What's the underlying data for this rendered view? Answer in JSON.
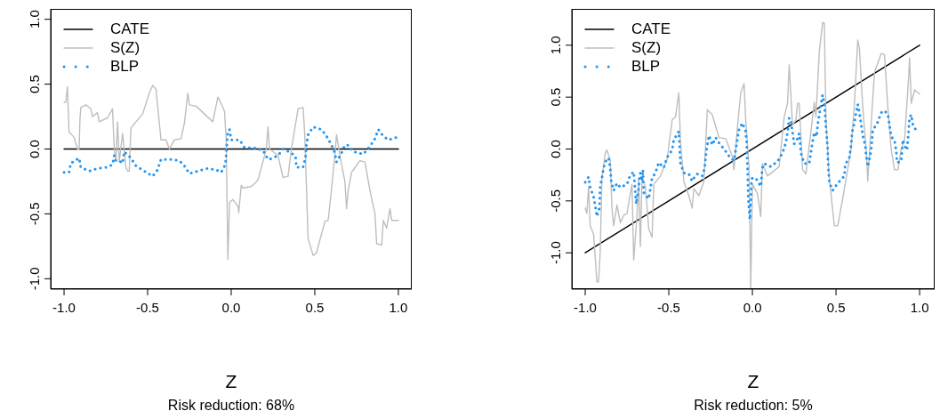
{
  "chart_data": [
    {
      "type": "line",
      "xlabel": "Z",
      "annotations": [
        "Risk reduction: 68%"
      ],
      "xlim": [
        -1.08,
        1.08
      ],
      "ylim": [
        -1.08,
        1.08
      ],
      "xticks": [
        {
          "value": -1,
          "label": "-1.0"
        },
        {
          "value": -0.5,
          "label": "-0.5"
        },
        {
          "value": 0,
          "label": "0.0"
        },
        {
          "value": 0.5,
          "label": "0.5"
        },
        {
          "value": 1,
          "label": "1.0"
        }
      ],
      "yticks": [
        {
          "value": -1,
          "label": "-1.0"
        },
        {
          "value": -0.5,
          "label": "-0.5"
        },
        {
          "value": 0,
          "label": "0.0"
        },
        {
          "value": 0.5,
          "label": "0.5"
        },
        {
          "value": 1,
          "label": "1.0"
        }
      ],
      "legend": "top left",
      "marker": "none",
      "series": [
        {
          "name": "CATE",
          "color": "#000000",
          "line_style": "solid",
          "x": [
            -1,
            1
          ],
          "values": [
            0,
            0
          ]
        },
        {
          "name": "S(Z)",
          "color": "#bebebe",
          "line_style": "solid",
          "x": [
            -1,
            -0.99,
            -0.98,
            -0.97,
            -0.94,
            -0.92,
            -0.91,
            -0.905,
            -0.9,
            -0.87,
            -0.84,
            -0.83,
            -0.8,
            -0.79,
            -0.74,
            -0.71,
            -0.7,
            -0.69,
            -0.68,
            -0.67,
            -0.65,
            -0.63,
            -0.62,
            -0.61,
            -0.6,
            -0.57,
            -0.53,
            -0.49,
            -0.47,
            -0.45,
            -0.42,
            -0.39,
            -0.37,
            -0.34,
            -0.3,
            -0.28,
            -0.26,
            -0.25,
            -0.21,
            -0.16,
            -0.11,
            -0.08,
            -0.06,
            -0.04,
            -0.03,
            -0.02,
            -0.01,
            0.01,
            0.04,
            0.045,
            0.06,
            0.07,
            0.12,
            0.16,
            0.21,
            0.22,
            0.23,
            0.28,
            0.31,
            0.34,
            0.36,
            0.4,
            0.43,
            0.44,
            0.46,
            0.49,
            0.51,
            0.56,
            0.58,
            0.6,
            0.62,
            0.63,
            0.65,
            0.68,
            0.69,
            0.7,
            0.72,
            0.77,
            0.8,
            0.83,
            0.86,
            0.87,
            0.9,
            0.91,
            0.93,
            0.95,
            0.96,
            1
          ],
          "values": [
            0.36,
            0.36,
            0.48,
            0.13,
            0.09,
            0,
            0,
            0.23,
            0.32,
            0.34,
            0.31,
            0.25,
            0.28,
            0.21,
            0.24,
            0.31,
            0,
            -0.09,
            0.21,
            -0.1,
            0.12,
            -0.14,
            -0.17,
            -0.17,
            0.16,
            0.21,
            0.27,
            0.43,
            0.49,
            0.46,
            0.07,
            0.07,
            0,
            0.07,
            0.08,
            0.2,
            0.43,
            0.34,
            0.33,
            0.27,
            0.21,
            0.4,
            0.35,
            0.29,
            0.07,
            -0.85,
            -0.41,
            -0.39,
            -0.44,
            -0.49,
            -0.28,
            -0.3,
            -0.29,
            -0.24,
            0,
            0.17,
            0,
            -0.05,
            -0.22,
            -0.21,
            0,
            0.31,
            0.32,
            0.11,
            -0.69,
            -0.82,
            -0.8,
            -0.56,
            -0.55,
            -0.31,
            -0.05,
            0.11,
            -0.05,
            -0.25,
            -0.46,
            -0.32,
            -0.18,
            -0.09,
            -0.1,
            -0.32,
            -0.5,
            -0.73,
            -0.74,
            -0.55,
            -0.61,
            -0.46,
            -0.55,
            -0.55
          ]
        },
        {
          "name": "BLP",
          "color": "#2196f3",
          "line_style": "dotted",
          "x": [
            -1,
            -0.97,
            -0.96,
            -0.91,
            -0.9,
            -0.85,
            -0.8,
            -0.74,
            -0.71,
            -0.7,
            -0.69,
            -0.67,
            -0.65,
            -0.64,
            -0.6,
            -0.57,
            -0.52,
            -0.47,
            -0.44,
            -0.42,
            -0.36,
            -0.31,
            -0.28,
            -0.25,
            -0.2,
            -0.14,
            -0.09,
            -0.06,
            -0.035,
            -0.03,
            -0.025,
            -0.02,
            -0.01,
            0,
            0.05,
            0.08,
            0.13,
            0.19,
            0.22,
            0.23,
            0.28,
            0.31,
            0.36,
            0.385,
            0.39,
            0.43,
            0.445,
            0.45,
            0.46,
            0.49,
            0.54,
            0.57,
            0.6,
            0.62,
            0.63,
            0.66,
            0.68,
            0.7,
            0.73,
            0.79,
            0.83,
            0.86,
            0.88,
            0.91,
            0.94,
            0.99
          ],
          "values": [
            -0.18,
            -0.18,
            -0.11,
            -0.07,
            -0.14,
            -0.17,
            -0.15,
            -0.14,
            -0.12,
            -0.05,
            -0.09,
            -0.09,
            -0.11,
            -0.02,
            -0.07,
            -0.13,
            -0.17,
            -0.21,
            -0.16,
            -0.08,
            -0.08,
            -0.09,
            -0.13,
            -0.19,
            -0.17,
            -0.15,
            -0.16,
            -0.18,
            -0.12,
            -0.04,
            0.05,
            0.13,
            0.15,
            0.07,
            0.07,
            0.01,
            0.01,
            -0.01,
            -0.08,
            -0.08,
            -0.05,
            0,
            -0.03,
            -0.06,
            -0.14,
            -0.14,
            -0.06,
            0.03,
            0.11,
            0.17,
            0.15,
            0.1,
            0.03,
            -0.03,
            -0.1,
            -0.03,
            0.03,
            0.03,
            -0.02,
            -0.04,
            0.02,
            0.08,
            0.15,
            0.1,
            0.07,
            0.09
          ]
        }
      ]
    },
    {
      "type": "line",
      "xlabel": "Z",
      "annotations": [
        "Risk reduction: 5%"
      ],
      "xlim": [
        -1.08,
        1.09
      ],
      "ylim": [
        -1.35,
        1.35
      ],
      "xticks": [
        {
          "value": -1,
          "label": "-1.0"
        },
        {
          "value": -0.5,
          "label": "-0.5"
        },
        {
          "value": 0,
          "label": "0.0"
        },
        {
          "value": 0.5,
          "label": "0.5"
        },
        {
          "value": 1,
          "label": "1.0"
        }
      ],
      "yticks": [
        {
          "value": -1,
          "label": "-1.0"
        },
        {
          "value": -0.5,
          "label": "-0.5"
        },
        {
          "value": 0,
          "label": "0.0"
        },
        {
          "value": 0.5,
          "label": "0.5"
        },
        {
          "value": 1,
          "label": "1.0"
        }
      ],
      "legend": "top left",
      "marker": "none",
      "series": [
        {
          "name": "CATE",
          "color": "#000000",
          "line_style": "solid",
          "x": [
            -1,
            1
          ],
          "values": [
            -1,
            1
          ]
        },
        {
          "name": "S(Z)",
          "color": "#bebebe",
          "line_style": "solid",
          "x": [
            -1,
            -0.99,
            -0.98,
            -0.97,
            -0.95,
            -0.93,
            -0.92,
            -0.91,
            -0.9,
            -0.88,
            -0.87,
            -0.85,
            -0.84,
            -0.83,
            -0.81,
            -0.79,
            -0.77,
            -0.75,
            -0.73,
            -0.72,
            -0.71,
            -0.69,
            -0.68,
            -0.67,
            -0.66,
            -0.64,
            -0.62,
            -0.6,
            -0.59,
            -0.55,
            -0.51,
            -0.48,
            -0.46,
            -0.44,
            -0.43,
            -0.41,
            -0.4,
            -0.38,
            -0.36,
            -0.35,
            -0.32,
            -0.29,
            -0.27,
            -0.24,
            -0.2,
            -0.16,
            -0.12,
            -0.11,
            -0.09,
            -0.07,
            -0.05,
            -0.04,
            -0.02,
            -0.01,
            0,
            0.03,
            0.05,
            0.06,
            0.09,
            0.16,
            0.19,
            0.21,
            0.22,
            0.24,
            0.26,
            0.27,
            0.28,
            0.3,
            0.32,
            0.35,
            0.37,
            0.38,
            0.4,
            0.42,
            0.43,
            0.44,
            0.46,
            0.49,
            0.51,
            0.54,
            0.59,
            0.61,
            0.63,
            0.64,
            0.66,
            0.68,
            0.69,
            0.71,
            0.73,
            0.77,
            0.79,
            0.81,
            0.83,
            0.85,
            0.87,
            0.89,
            0.91,
            0.935,
            0.94,
            0.95,
            0.97,
            1
          ],
          "values": [
            -0.57,
            -0.62,
            -0.36,
            -0.74,
            -0.82,
            -1.28,
            -1.28,
            -0.99,
            -0.28,
            -0.04,
            -0.01,
            -0.11,
            -0.57,
            -0.74,
            -0.54,
            -0.71,
            -0.64,
            -0.62,
            -0.43,
            -0.34,
            -1.07,
            -0.63,
            -0.28,
            -0.94,
            -0.28,
            -0.36,
            -0.77,
            -0.85,
            -0.34,
            -0.26,
            -0.1,
            0.28,
            0.31,
            0.54,
            0.06,
            -0.31,
            -0.36,
            -0.45,
            -0.57,
            -0.38,
            -0.45,
            -0.31,
            0.38,
            0.33,
            0.11,
            0.1,
            -0.07,
            -0.2,
            0.2,
            0.54,
            0.63,
            0.28,
            -0.17,
            -1.34,
            -0.34,
            -0.43,
            -0.65,
            -0.14,
            -0.26,
            -0.17,
            0.31,
            0.44,
            0.81,
            0.23,
            0.28,
            0.44,
            0.44,
            -0.2,
            -0.24,
            0.17,
            0.45,
            0.31,
            0.94,
            1.22,
            1.21,
            0.28,
            -0.28,
            -0.74,
            -0.74,
            -0.48,
            0,
            0.43,
            1.05,
            0.97,
            0.4,
            0,
            -0.31,
            0.23,
            0.74,
            0.92,
            0.91,
            0.4,
            0,
            -0.2,
            -0.2,
            0,
            0.09,
            0.71,
            0.88,
            0.44,
            0.57,
            0.53
          ]
        },
        {
          "name": "BLP",
          "color": "#2196f3",
          "line_style": "dotted",
          "x": [
            -1,
            -0.98,
            -0.97,
            -0.95,
            -0.94,
            -0.93,
            -0.915,
            -0.91,
            -0.9,
            -0.89,
            -0.87,
            -0.86,
            -0.85,
            -0.845,
            -0.83,
            -0.81,
            -0.79,
            -0.75,
            -0.73,
            -0.71,
            -0.705,
            -0.7,
            -0.695,
            -0.69,
            -0.68,
            -0.675,
            -0.67,
            -0.66,
            -0.655,
            -0.65,
            -0.62,
            -0.61,
            -0.6,
            -0.58,
            -0.56,
            -0.53,
            -0.51,
            -0.48,
            -0.47,
            -0.45,
            -0.44,
            -0.437,
            -0.434,
            -0.43,
            -0.41,
            -0.38,
            -0.36,
            -0.35,
            -0.33,
            -0.3,
            -0.285,
            -0.28,
            -0.27,
            -0.26,
            -0.24,
            -0.22,
            -0.2,
            -0.17,
            -0.13,
            -0.11,
            -0.1,
            -0.09,
            -0.08,
            -0.06,
            -0.04,
            -0.035,
            -0.03,
            -0.028,
            -0.025,
            -0.02,
            -0.015,
            -0.01,
            -0.005,
            0,
            0.02,
            0.05,
            0.06,
            0.07,
            0.11,
            0.15,
            0.18,
            0.2,
            0.21,
            0.22,
            0.23,
            0.24,
            0.25,
            0.27,
            0.28,
            0.29,
            0.31,
            0.34,
            0.35,
            0.36,
            0.37,
            0.385,
            0.39,
            0.4,
            0.41,
            0.42,
            0.43,
            0.435,
            0.44,
            0.445,
            0.45,
            0.452,
            0.455,
            0.46,
            0.48,
            0.51,
            0.55,
            0.555,
            0.58,
            0.59,
            0.595,
            0.6,
            0.61,
            0.62,
            0.63,
            0.64,
            0.65,
            0.66,
            0.675,
            0.68,
            0.685,
            0.69,
            0.71,
            0.715,
            0.72,
            0.75,
            0.77,
            0.79,
            0.81,
            0.82,
            0.83,
            0.85,
            0.86,
            0.865,
            0.89,
            0.895,
            0.9,
            0.91,
            0.925,
            0.93,
            0.935,
            0.94,
            0.95,
            0.96,
            0.97,
            0.98
          ],
          "values": [
            -0.32,
            -0.27,
            -0.37,
            -0.46,
            -0.55,
            -0.65,
            -0.57,
            -0.36,
            -0.28,
            -0.18,
            -0.09,
            -0.09,
            -0.19,
            -0.3,
            -0.4,
            -0.33,
            -0.37,
            -0.34,
            -0.25,
            -0.22,
            -0.32,
            -0.43,
            -0.53,
            -0.47,
            -0.38,
            -0.28,
            -0.23,
            -0.31,
            -0.2,
            -0.42,
            -0.48,
            -0.38,
            -0.28,
            -0.23,
            -0.13,
            -0.18,
            -0.08,
            -0.01,
            0.09,
            0.14,
            0.17,
            0.07,
            -0.04,
            -0.14,
            -0.23,
            -0.24,
            -0.31,
            -0.28,
            -0.24,
            -0.26,
            -0.18,
            -0.08,
            0.03,
            0.13,
            0.04,
            0.11,
            0.06,
            0,
            -0.09,
            -0.11,
            -0.01,
            0.09,
            0.19,
            0.25,
            0.17,
            0.06,
            -0.15,
            -0.26,
            -0.47,
            -0.58,
            -0.68,
            -0.51,
            -0.29,
            -0.28,
            -0.28,
            -0.36,
            -0.18,
            -0.14,
            -0.17,
            -0.12,
            -0.04,
            0.06,
            0.16,
            0.3,
            0.26,
            0.16,
            0.05,
            0.1,
            0.15,
            -0.04,
            -0.14,
            -0.14,
            -0.03,
            0.07,
            0.16,
            0.12,
            0.23,
            0.33,
            0.43,
            0.52,
            0.43,
            0.32,
            0.21,
            0.11,
            0,
            -0.11,
            -0.21,
            -0.32,
            -0.4,
            -0.33,
            -0.26,
            -0.15,
            -0.08,
            0.03,
            0.13,
            0.19,
            0.25,
            0.35,
            0.43,
            0.35,
            0.24,
            0.13,
            0.03,
            -0.06,
            -0.11,
            -0.17,
            -0.02,
            0.08,
            0.18,
            0.26,
            0.35,
            0.37,
            0.33,
            0.23,
            0.12,
            0.08,
            -0.02,
            -0.13,
            -0.12,
            -0.01,
            0.09,
            0.03,
            -0.01,
            0.09,
            0.19,
            0.3,
            0.33,
            0.23,
            0.21,
            0.17
          ]
        }
      ]
    }
  ]
}
